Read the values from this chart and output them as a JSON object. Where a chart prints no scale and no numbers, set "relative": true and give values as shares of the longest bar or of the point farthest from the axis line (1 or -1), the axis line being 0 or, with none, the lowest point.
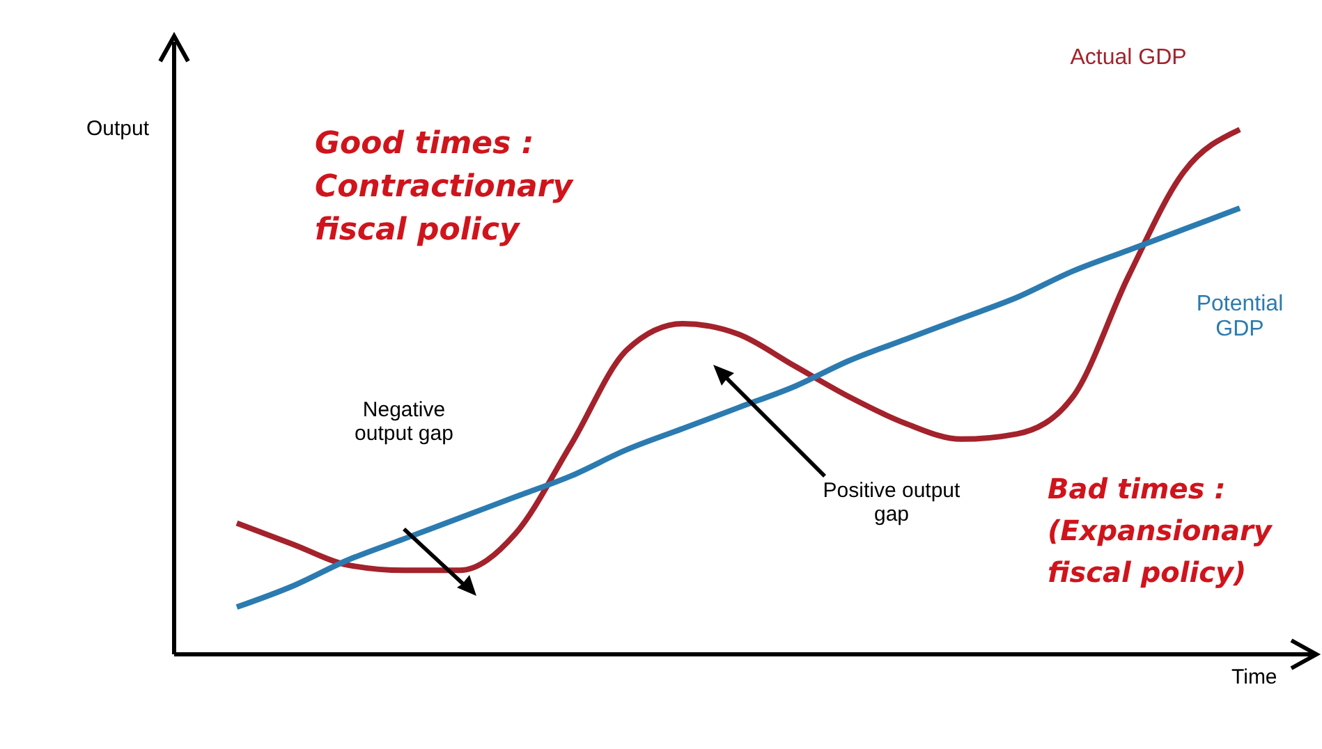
{
  "chart_data": {
    "type": "line",
    "relative": true,
    "xlabel": "Time",
    "ylabel": "Output",
    "categories": [
      null,
      null,
      null,
      null,
      null,
      null,
      null,
      null,
      null,
      null,
      null,
      null,
      null,
      null,
      null,
      null,
      null,
      null,
      null
    ],
    "series": [
      {
        "name": "Actual GDP",
        "color": "#a3222b",
        "values": [
          0.25,
          0.21,
          0.17,
          0.16,
          0.16,
          0.23,
          0.4,
          0.58,
          0.63,
          0.61,
          0.55,
          0.49,
          0.44,
          0.41,
          0.42,
          0.49,
          0.72,
          0.92,
          1
        ]
      },
      {
        "name": "Potential GDP",
        "color": "#2b7bb0",
        "values": [
          0.09,
          0.13,
          0.18,
          0.22,
          0.26,
          0.3,
          0.34,
          0.39,
          0.43,
          0.47,
          0.51,
          0.56,
          0.6,
          0.64,
          0.68,
          0.73,
          0.77,
          0.81,
          0.85
        ]
      }
    ],
    "annotations": [
      "Good times : Contractionary fiscal policy",
      "Bad times : (Expansionary fiscal policy)",
      "Negative output gap",
      "Positive output gap"
    ],
    "grid": false,
    "legend": false,
    "line_style": "solid"
  }
}
